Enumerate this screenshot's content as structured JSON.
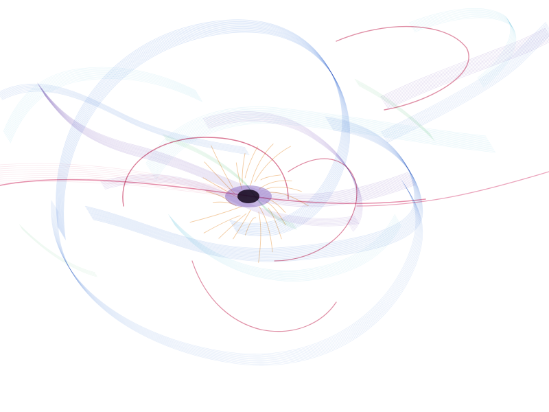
{
  "image": {
    "background": "#ffffff",
    "palette": {
      "blue": "#2f6fd6",
      "cyan": "#3bb7d6",
      "violet": "#5a2aa8",
      "magenta": "#d2366a",
      "crimson": "#c21f4e",
      "green": "#2fb35a",
      "orange": "#e58a2a",
      "dark-core": "#12061a"
    }
  }
}
